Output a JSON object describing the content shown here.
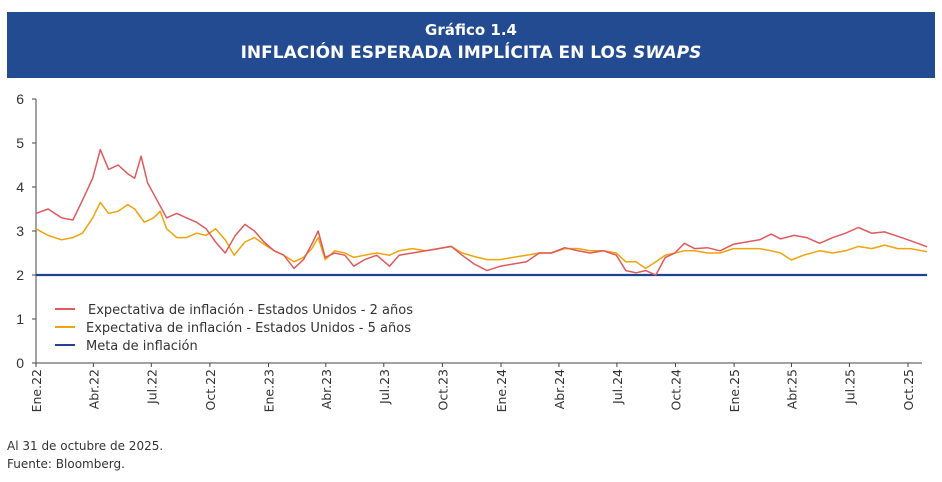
{
  "header": {
    "label": "Gráfico 1.4",
    "title_main": "INFLACIÓN ESPERADA IMPLÍCITA EN LOS ",
    "title_italic": "SWAPS"
  },
  "footnotes": [
    "Al 31 de octubre de 2025.",
    "Fuente: Bloomberg."
  ],
  "chart_data": {
    "type": "line",
    "title": "Gráfico 1.4 INFLACIÓN ESPERADA IMPLÍCITA EN LOS SWAPS",
    "xlabel": "",
    "ylabel": "",
    "ylim": [
      0,
      6
    ],
    "yticks": [
      0,
      1,
      2,
      3,
      4,
      5,
      6
    ],
    "xlim": [
      "2022-01-01",
      "2025-10-31"
    ],
    "xticks": [
      {
        "date": "2022-01-01",
        "label": "Ene.22"
      },
      {
        "date": "2022-04-01",
        "label": "Abr.22"
      },
      {
        "date": "2022-07-01",
        "label": "Jul.22"
      },
      {
        "date": "2022-10-01",
        "label": "Oct.22"
      },
      {
        "date": "2023-01-01",
        "label": "Ene.23"
      },
      {
        "date": "2023-04-01",
        "label": "Abr.23"
      },
      {
        "date": "2023-07-01",
        "label": "Jul.23"
      },
      {
        "date": "2023-10-01",
        "label": "Oct.23"
      },
      {
        "date": "2024-01-01",
        "label": "Ene.24"
      },
      {
        "date": "2024-04-01",
        "label": "Abr.24"
      },
      {
        "date": "2024-07-01",
        "label": "Jul.24"
      },
      {
        "date": "2024-10-01",
        "label": "Oct.24"
      },
      {
        "date": "2025-01-01",
        "label": "Ene.25"
      },
      {
        "date": "2025-04-01",
        "label": "Abr.25"
      },
      {
        "date": "2025-07-01",
        "label": "Jul.25"
      },
      {
        "date": "2025-10-01",
        "label": "Oct.25"
      }
    ],
    "grid": false,
    "legend_position": "bottom-left",
    "series": [
      {
        "name": "Expectativa de inflación -  Estados Unidos -  2 años",
        "color": "#e0595e",
        "points": [
          [
            "2022-01-01",
            3.4
          ],
          [
            "2022-01-20",
            3.5
          ],
          [
            "2022-02-10",
            3.3
          ],
          [
            "2022-02-28",
            3.25
          ],
          [
            "2022-03-15",
            3.7
          ],
          [
            "2022-03-31",
            4.2
          ],
          [
            "2022-04-12",
            4.85
          ],
          [
            "2022-04-25",
            4.4
          ],
          [
            "2022-05-10",
            4.5
          ],
          [
            "2022-05-25",
            4.3
          ],
          [
            "2022-06-05",
            4.2
          ],
          [
            "2022-06-15",
            4.7
          ],
          [
            "2022-06-25",
            4.1
          ],
          [
            "2022-07-10",
            3.7
          ],
          [
            "2022-07-25",
            3.3
          ],
          [
            "2022-08-10",
            3.4
          ],
          [
            "2022-08-25",
            3.3
          ],
          [
            "2022-09-10",
            3.2
          ],
          [
            "2022-09-25",
            3.05
          ],
          [
            "2022-10-10",
            2.75
          ],
          [
            "2022-10-25",
            2.5
          ],
          [
            "2022-11-10",
            2.9
          ],
          [
            "2022-11-25",
            3.15
          ],
          [
            "2022-12-10",
            3.0
          ],
          [
            "2022-12-25",
            2.75
          ],
          [
            "2023-01-10",
            2.55
          ],
          [
            "2023-01-25",
            2.45
          ],
          [
            "2023-02-10",
            2.15
          ],
          [
            "2023-02-25",
            2.35
          ],
          [
            "2023-03-10",
            2.7
          ],
          [
            "2023-03-20",
            3.0
          ],
          [
            "2023-03-31",
            2.4
          ],
          [
            "2023-04-15",
            2.5
          ],
          [
            "2023-05-01",
            2.45
          ],
          [
            "2023-05-15",
            2.2
          ],
          [
            "2023-06-01",
            2.35
          ],
          [
            "2023-06-20",
            2.45
          ],
          [
            "2023-07-10",
            2.2
          ],
          [
            "2023-07-25",
            2.45
          ],
          [
            "2023-08-15",
            2.5
          ],
          [
            "2023-09-05",
            2.55
          ],
          [
            "2023-09-25",
            2.6
          ],
          [
            "2023-10-15",
            2.65
          ],
          [
            "2023-11-01",
            2.45
          ],
          [
            "2023-11-20",
            2.25
          ],
          [
            "2023-12-10",
            2.1
          ],
          [
            "2023-12-31",
            2.2
          ],
          [
            "2024-01-20",
            2.25
          ],
          [
            "2024-02-10",
            2.3
          ],
          [
            "2024-03-01",
            2.5
          ],
          [
            "2024-03-20",
            2.5
          ],
          [
            "2024-04-10",
            2.62
          ],
          [
            "2024-05-01",
            2.55
          ],
          [
            "2024-05-20",
            2.5
          ],
          [
            "2024-06-10",
            2.55
          ],
          [
            "2024-06-30",
            2.45
          ],
          [
            "2024-07-15",
            2.1
          ],
          [
            "2024-07-31",
            2.05
          ],
          [
            "2024-08-15",
            2.1
          ],
          [
            "2024-08-31",
            2.0
          ],
          [
            "2024-09-15",
            2.4
          ],
          [
            "2024-09-30",
            2.5
          ],
          [
            "2024-10-15",
            2.72
          ],
          [
            "2024-10-31",
            2.6
          ],
          [
            "2024-11-20",
            2.62
          ],
          [
            "2024-12-10",
            2.55
          ],
          [
            "2024-12-31",
            2.7
          ],
          [
            "2025-01-20",
            2.75
          ],
          [
            "2025-02-10",
            2.8
          ],
          [
            "2025-02-28",
            2.93
          ],
          [
            "2025-03-15",
            2.82
          ],
          [
            "2025-04-05",
            2.9
          ],
          [
            "2025-04-25",
            2.85
          ],
          [
            "2025-05-15",
            2.72
          ],
          [
            "2025-06-05",
            2.85
          ],
          [
            "2025-06-25",
            2.95
          ],
          [
            "2025-07-15",
            3.08
          ],
          [
            "2025-08-05",
            2.95
          ],
          [
            "2025-08-25",
            2.98
          ],
          [
            "2025-09-15",
            2.88
          ],
          [
            "2025-10-05",
            2.78
          ],
          [
            "2025-10-31",
            2.64
          ]
        ]
      },
      {
        "name": "Expectativa de inflación -  Estados Unidos -  5 años",
        "color": "#f0a30a",
        "points": [
          [
            "2022-01-01",
            3.05
          ],
          [
            "2022-01-20",
            2.9
          ],
          [
            "2022-02-10",
            2.8
          ],
          [
            "2022-02-28",
            2.85
          ],
          [
            "2022-03-15",
            2.95
          ],
          [
            "2022-03-31",
            3.3
          ],
          [
            "2022-04-12",
            3.65
          ],
          [
            "2022-04-25",
            3.4
          ],
          [
            "2022-05-10",
            3.45
          ],
          [
            "2022-05-25",
            3.6
          ],
          [
            "2022-06-05",
            3.5
          ],
          [
            "2022-06-20",
            3.2
          ],
          [
            "2022-07-05",
            3.3
          ],
          [
            "2022-07-15",
            3.45
          ],
          [
            "2022-07-25",
            3.05
          ],
          [
            "2022-08-10",
            2.85
          ],
          [
            "2022-08-25",
            2.85
          ],
          [
            "2022-09-10",
            2.95
          ],
          [
            "2022-09-25",
            2.9
          ],
          [
            "2022-10-10",
            3.05
          ],
          [
            "2022-10-25",
            2.8
          ],
          [
            "2022-11-08",
            2.45
          ],
          [
            "2022-11-25",
            2.75
          ],
          [
            "2022-12-10",
            2.85
          ],
          [
            "2022-12-25",
            2.7
          ],
          [
            "2023-01-10",
            2.55
          ],
          [
            "2023-01-25",
            2.45
          ],
          [
            "2023-02-10",
            2.3
          ],
          [
            "2023-02-25",
            2.4
          ],
          [
            "2023-03-10",
            2.6
          ],
          [
            "2023-03-20",
            2.85
          ],
          [
            "2023-03-31",
            2.35
          ],
          [
            "2023-04-15",
            2.55
          ],
          [
            "2023-05-01",
            2.5
          ],
          [
            "2023-05-15",
            2.4
          ],
          [
            "2023-06-01",
            2.45
          ],
          [
            "2023-06-20",
            2.5
          ],
          [
            "2023-07-10",
            2.45
          ],
          [
            "2023-07-25",
            2.55
          ],
          [
            "2023-08-15",
            2.6
          ],
          [
            "2023-09-05",
            2.55
          ],
          [
            "2023-09-25",
            2.6
          ],
          [
            "2023-10-15",
            2.65
          ],
          [
            "2023-11-01",
            2.5
          ],
          [
            "2023-11-20",
            2.42
          ],
          [
            "2023-12-10",
            2.35
          ],
          [
            "2023-12-31",
            2.35
          ],
          [
            "2024-01-20",
            2.4
          ],
          [
            "2024-02-10",
            2.45
          ],
          [
            "2024-03-01",
            2.5
          ],
          [
            "2024-03-20",
            2.5
          ],
          [
            "2024-04-10",
            2.6
          ],
          [
            "2024-05-01",
            2.6
          ],
          [
            "2024-05-20",
            2.55
          ],
          [
            "2024-06-10",
            2.55
          ],
          [
            "2024-06-30",
            2.5
          ],
          [
            "2024-07-15",
            2.3
          ],
          [
            "2024-07-31",
            2.3
          ],
          [
            "2024-08-15",
            2.15
          ],
          [
            "2024-08-31",
            2.3
          ],
          [
            "2024-09-15",
            2.45
          ],
          [
            "2024-09-30",
            2.5
          ],
          [
            "2024-10-15",
            2.55
          ],
          [
            "2024-10-31",
            2.55
          ],
          [
            "2024-11-20",
            2.5
          ],
          [
            "2024-12-10",
            2.5
          ],
          [
            "2024-12-31",
            2.6
          ],
          [
            "2025-01-20",
            2.6
          ],
          [
            "2025-02-10",
            2.6
          ],
          [
            "2025-02-28",
            2.55
          ],
          [
            "2025-03-15",
            2.5
          ],
          [
            "2025-04-01",
            2.34
          ],
          [
            "2025-04-20",
            2.45
          ],
          [
            "2025-05-15",
            2.55
          ],
          [
            "2025-06-05",
            2.5
          ],
          [
            "2025-06-25",
            2.55
          ],
          [
            "2025-07-15",
            2.65
          ],
          [
            "2025-08-05",
            2.6
          ],
          [
            "2025-08-25",
            2.68
          ],
          [
            "2025-09-15",
            2.6
          ],
          [
            "2025-10-05",
            2.6
          ],
          [
            "2025-10-31",
            2.53
          ]
        ]
      },
      {
        "name": "Meta de inflación",
        "color": "#1f4591",
        "points": [
          [
            "2022-01-01",
            2
          ],
          [
            "2025-10-31",
            2
          ]
        ]
      }
    ]
  }
}
